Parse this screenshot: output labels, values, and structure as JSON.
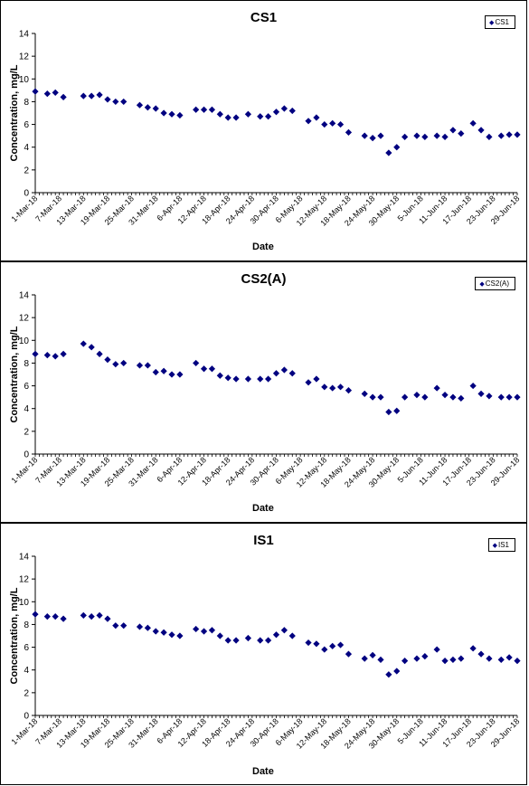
{
  "chart_data": [
    {
      "type": "scatter",
      "title": "CS1",
      "xlabel": "Date",
      "ylabel": "Concentration, mg/L",
      "ylim": [
        0,
        14
      ],
      "yticks": [
        0,
        2,
        4,
        6,
        8,
        10,
        12,
        14
      ],
      "xlim": [
        "2018-03-01",
        "2018-06-29"
      ],
      "xtick_labels": [
        "1-Mar-18",
        "7-Mar-18",
        "13-Mar-18",
        "19-Mar-18",
        "25-Mar-18",
        "31-Mar-18",
        "6-Apr-18",
        "12-Apr-18",
        "18-Apr-18",
        "24-Apr-18",
        "30-Apr-18",
        "6-May-18",
        "12-May-18",
        "18-May-18",
        "24-May-18",
        "30-May-18",
        "5-Jun-18",
        "11-Jun-18",
        "17-Jun-18",
        "23-Jun-18",
        "29-Jun-18"
      ],
      "marker_color": "#000080",
      "legend_position": "top-right",
      "series": [
        {
          "name": "CS1",
          "x": [
            "2018-03-01",
            "2018-03-04",
            "2018-03-06",
            "2018-03-08",
            "2018-03-13",
            "2018-03-15",
            "2018-03-17",
            "2018-03-19",
            "2018-03-21",
            "2018-03-23",
            "2018-03-27",
            "2018-03-29",
            "2018-03-31",
            "2018-04-02",
            "2018-04-04",
            "2018-04-06",
            "2018-04-10",
            "2018-04-12",
            "2018-04-14",
            "2018-04-16",
            "2018-04-18",
            "2018-04-20",
            "2018-04-23",
            "2018-04-26",
            "2018-04-28",
            "2018-04-30",
            "2018-05-02",
            "2018-05-04",
            "2018-05-08",
            "2018-05-10",
            "2018-05-12",
            "2018-05-14",
            "2018-05-16",
            "2018-05-18",
            "2018-05-22",
            "2018-05-24",
            "2018-05-26",
            "2018-05-28",
            "2018-05-30",
            "2018-06-01",
            "2018-06-04",
            "2018-06-06",
            "2018-06-09",
            "2018-06-11",
            "2018-06-13",
            "2018-06-15",
            "2018-06-18",
            "2018-06-20",
            "2018-06-22",
            "2018-06-25",
            "2018-06-27",
            "2018-06-29"
          ],
          "y": [
            8.9,
            8.7,
            8.8,
            8.4,
            8.5,
            8.5,
            8.6,
            8.2,
            8.0,
            8.0,
            7.7,
            7.5,
            7.4,
            7.0,
            6.9,
            6.8,
            7.3,
            7.3,
            7.3,
            6.9,
            6.6,
            6.6,
            6.9,
            6.7,
            6.7,
            7.1,
            7.4,
            7.2,
            6.3,
            6.6,
            6.0,
            6.1,
            6.0,
            5.3,
            5.0,
            4.8,
            5.0,
            3.5,
            4.0,
            4.9,
            5.0,
            4.9,
            5.0,
            4.9,
            5.5,
            5.2,
            6.1,
            5.5,
            4.9,
            5.0,
            5.1,
            5.1
          ]
        }
      ]
    },
    {
      "type": "scatter",
      "title": "CS2(A)",
      "xlabel": "Date",
      "ylabel": "Concentration, mg/L",
      "ylim": [
        0,
        14
      ],
      "yticks": [
        0,
        2,
        4,
        6,
        8,
        10,
        12,
        14
      ],
      "xlim": [
        "2018-03-01",
        "2018-06-29"
      ],
      "xtick_labels": [
        "1-Mar-18",
        "7-Mar-18",
        "13-Mar-18",
        "19-Mar-18",
        "25-Mar-18",
        "31-Mar-18",
        "6-Apr-18",
        "12-Apr-18",
        "18-Apr-18",
        "24-Apr-18",
        "30-Apr-18",
        "6-May-18",
        "12-May-18",
        "18-May-18",
        "24-May-18",
        "30-May-18",
        "5-Jun-18",
        "11-Jun-18",
        "17-Jun-18",
        "23-Jun-18",
        "29-Jun-18"
      ],
      "marker_color": "#000080",
      "legend_position": "top-right",
      "series": [
        {
          "name": "CS2(A)",
          "x": [
            "2018-03-01",
            "2018-03-04",
            "2018-03-06",
            "2018-03-08",
            "2018-03-13",
            "2018-03-15",
            "2018-03-17",
            "2018-03-19",
            "2018-03-21",
            "2018-03-23",
            "2018-03-27",
            "2018-03-29",
            "2018-03-31",
            "2018-04-02",
            "2018-04-04",
            "2018-04-06",
            "2018-04-10",
            "2018-04-12",
            "2018-04-14",
            "2018-04-16",
            "2018-04-18",
            "2018-04-20",
            "2018-04-23",
            "2018-04-26",
            "2018-04-28",
            "2018-04-30",
            "2018-05-02",
            "2018-05-04",
            "2018-05-08",
            "2018-05-10",
            "2018-05-12",
            "2018-05-14",
            "2018-05-16",
            "2018-05-18",
            "2018-05-22",
            "2018-05-24",
            "2018-05-26",
            "2018-05-28",
            "2018-05-30",
            "2018-06-01",
            "2018-06-04",
            "2018-06-06",
            "2018-06-09",
            "2018-06-11",
            "2018-06-13",
            "2018-06-15",
            "2018-06-18",
            "2018-06-20",
            "2018-06-22",
            "2018-06-25",
            "2018-06-27",
            "2018-06-29"
          ],
          "y": [
            8.8,
            8.7,
            8.6,
            8.8,
            9.7,
            9.4,
            8.8,
            8.3,
            7.9,
            8.0,
            7.8,
            7.8,
            7.2,
            7.3,
            7.0,
            7.0,
            8.0,
            7.5,
            7.5,
            6.9,
            6.7,
            6.6,
            6.6,
            6.6,
            6.6,
            7.1,
            7.4,
            7.1,
            6.3,
            6.6,
            5.9,
            5.8,
            5.9,
            5.6,
            5.3,
            5.0,
            5.0,
            3.7,
            3.8,
            5.0,
            5.2,
            5.0,
            5.8,
            5.2,
            5.0,
            4.9,
            6.0,
            5.3,
            5.1,
            5.0,
            5.0,
            5.0
          ]
        }
      ]
    },
    {
      "type": "scatter",
      "title": "IS1",
      "xlabel": "Date",
      "ylabel": "Concentration, mg/L",
      "ylim": [
        0,
        14
      ],
      "yticks": [
        0,
        2,
        4,
        6,
        8,
        10,
        12,
        14
      ],
      "xlim": [
        "2018-03-01",
        "2018-06-29"
      ],
      "xtick_labels": [
        "1-Mar-18",
        "7-Mar-18",
        "13-Mar-18",
        "19-Mar-18",
        "25-Mar-18",
        "31-Mar-18",
        "6-Apr-18",
        "12-Apr-18",
        "18-Apr-18",
        "24-Apr-18",
        "30-Apr-18",
        "6-May-18",
        "12-May-18",
        "18-May-18",
        "24-May-18",
        "30-May-18",
        "5-Jun-18",
        "11-Jun-18",
        "17-Jun-18",
        "23-Jun-18",
        "29-Jun-18"
      ],
      "marker_color": "#000080",
      "legend_position": "top-right",
      "series": [
        {
          "name": "IS1",
          "x": [
            "2018-03-01",
            "2018-03-04",
            "2018-03-06",
            "2018-03-08",
            "2018-03-13",
            "2018-03-15",
            "2018-03-17",
            "2018-03-19",
            "2018-03-21",
            "2018-03-23",
            "2018-03-27",
            "2018-03-29",
            "2018-03-31",
            "2018-04-02",
            "2018-04-04",
            "2018-04-06",
            "2018-04-10",
            "2018-04-12",
            "2018-04-14",
            "2018-04-16",
            "2018-04-18",
            "2018-04-20",
            "2018-04-23",
            "2018-04-26",
            "2018-04-28",
            "2018-04-30",
            "2018-05-02",
            "2018-05-04",
            "2018-05-08",
            "2018-05-10",
            "2018-05-12",
            "2018-05-14",
            "2018-05-16",
            "2018-05-18",
            "2018-05-22",
            "2018-05-24",
            "2018-05-26",
            "2018-05-28",
            "2018-05-30",
            "2018-06-01",
            "2018-06-04",
            "2018-06-06",
            "2018-06-09",
            "2018-06-11",
            "2018-06-13",
            "2018-06-15",
            "2018-06-18",
            "2018-06-20",
            "2018-06-22",
            "2018-06-25",
            "2018-06-27",
            "2018-06-29"
          ],
          "y": [
            8.9,
            8.7,
            8.7,
            8.5,
            8.8,
            8.7,
            8.8,
            8.5,
            7.9,
            7.9,
            7.8,
            7.7,
            7.4,
            7.3,
            7.1,
            7.0,
            7.6,
            7.4,
            7.5,
            7.0,
            6.6,
            6.6,
            6.8,
            6.6,
            6.6,
            7.1,
            7.5,
            7.0,
            6.4,
            6.3,
            5.8,
            6.1,
            6.2,
            5.4,
            5.0,
            5.3,
            4.9,
            3.6,
            3.9,
            4.8,
            5.0,
            5.2,
            5.8,
            4.8,
            4.9,
            5.0,
            5.9,
            5.4,
            5.0,
            4.9,
            5.1,
            4.8
          ]
        }
      ]
    }
  ]
}
